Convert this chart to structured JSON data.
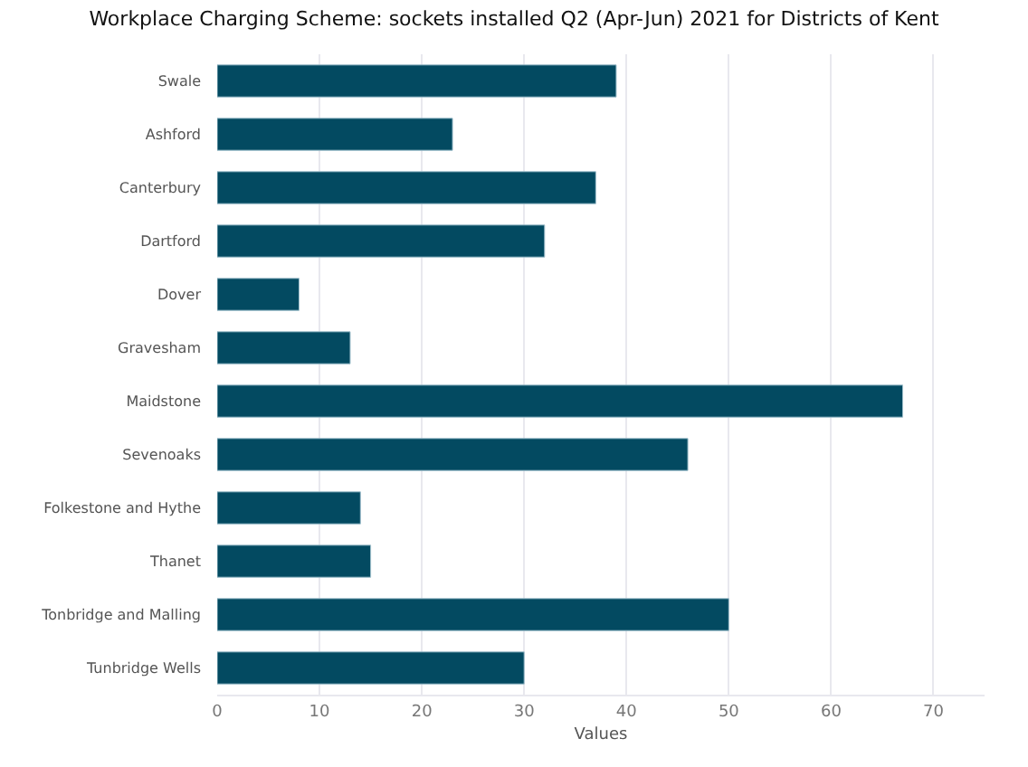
{
  "chart_data": {
    "type": "bar",
    "orientation": "horizontal",
    "title": "Workplace Charging Scheme: sockets installed Q2 (Apr-Jun) 2021 for Districts of Kent",
    "xlabel": "Values",
    "categories": [
      "Swale",
      "Ashford",
      "Canterbury",
      "Dartford",
      "Dover",
      "Gravesham",
      "Maidstone",
      "Sevenoaks",
      "Folkestone and Hythe",
      "Thanet",
      "Tonbridge and Malling",
      "Tunbridge Wells"
    ],
    "values": [
      39,
      23,
      37,
      32,
      8,
      13,
      67,
      46,
      14,
      15,
      50,
      30
    ],
    "color": "#034a61",
    "xlim": [
      0,
      75
    ],
    "xticks": [
      0,
      10,
      20,
      30,
      40,
      50,
      60,
      70
    ],
    "grid": "x"
  }
}
